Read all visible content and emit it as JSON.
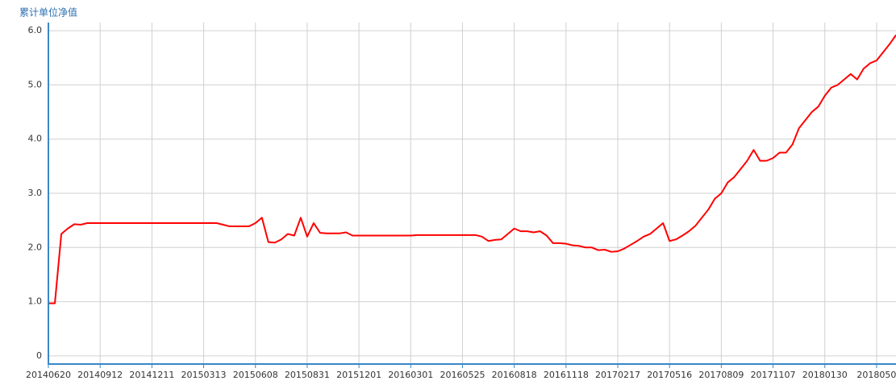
{
  "chart_data": {
    "type": "line",
    "title": "累计单位净值",
    "categories": [
      "20140620",
      null,
      null,
      null,
      null,
      null,
      null,
      null,
      "20140912",
      null,
      null,
      null,
      null,
      null,
      null,
      null,
      "20141211",
      null,
      null,
      null,
      null,
      null,
      null,
      null,
      "20150313",
      null,
      null,
      null,
      null,
      null,
      null,
      null,
      "20150608",
      null,
      null,
      null,
      null,
      null,
      null,
      null,
      "20150831",
      null,
      null,
      null,
      null,
      null,
      null,
      null,
      "20151201",
      null,
      null,
      null,
      null,
      null,
      null,
      null,
      "20160301",
      null,
      null,
      null,
      null,
      null,
      null,
      null,
      "20160525",
      null,
      null,
      null,
      null,
      null,
      null,
      null,
      "20160818",
      null,
      null,
      null,
      null,
      null,
      null,
      null,
      "20161118",
      null,
      null,
      null,
      null,
      null,
      null,
      null,
      "20170217",
      null,
      null,
      null,
      null,
      null,
      null,
      null,
      "20170516",
      null,
      null,
      null,
      null,
      null,
      null,
      null,
      "20170809",
      null,
      null,
      null,
      null,
      null,
      null,
      null,
      "20171107",
      null,
      null,
      null,
      null,
      null,
      null,
      null,
      "20180130",
      null,
      null,
      null,
      null,
      null,
      null,
      null,
      "2018050",
      null,
      null,
      null
    ],
    "values": [
      0.97,
      0.97,
      2.25,
      2.35,
      2.43,
      2.42,
      2.45,
      2.45,
      2.45,
      2.45,
      2.45,
      2.45,
      2.45,
      2.45,
      2.45,
      2.45,
      2.45,
      2.45,
      2.45,
      2.45,
      2.45,
      2.45,
      2.45,
      2.45,
      2.45,
      2.45,
      2.45,
      2.42,
      2.39,
      2.39,
      2.39,
      2.39,
      2.45,
      2.55,
      2.1,
      2.09,
      2.15,
      2.25,
      2.22,
      2.55,
      2.2,
      2.45,
      2.27,
      2.26,
      2.26,
      2.26,
      2.28,
      2.22,
      2.22,
      2.22,
      2.22,
      2.22,
      2.22,
      2.22,
      2.22,
      2.22,
      2.22,
      2.23,
      2.23,
      2.23,
      2.23,
      2.23,
      2.23,
      2.23,
      2.23,
      2.23,
      2.23,
      2.2,
      2.12,
      2.14,
      2.15,
      2.25,
      2.35,
      2.3,
      2.3,
      2.28,
      2.3,
      2.22,
      2.08,
      2.08,
      2.07,
      2.04,
      2.03,
      2.0,
      2.0,
      1.95,
      1.96,
      1.92,
      1.93,
      1.98,
      2.05,
      2.12,
      2.2,
      2.25,
      2.35,
      2.45,
      2.12,
      2.15,
      2.22,
      2.3,
      2.4,
      2.55,
      2.7,
      2.9,
      3.0,
      3.2,
      3.3,
      3.45,
      3.6,
      3.8,
      3.6,
      3.6,
      3.65,
      3.75,
      3.75,
      3.9,
      4.2,
      4.35,
      4.5,
      4.6,
      4.8,
      4.95,
      5.0,
      5.1,
      5.2,
      5.1,
      5.3,
      5.4,
      5.45,
      5.6,
      5.75,
      5.92
    ],
    "color": "#ff0000",
    "ylim": [
      -0.15,
      6.15
    ],
    "yticks": [
      0,
      {
        "value": 1,
        "label": "1.0"
      },
      {
        "value": 2,
        "label": "2.0"
      },
      {
        "value": 3,
        "label": "3.0"
      },
      {
        "value": 4,
        "label": "4.0"
      },
      {
        "value": 5,
        "label": "5.0"
      },
      {
        "value": 6,
        "label": "6.0"
      }
    ],
    "grid": true
  }
}
